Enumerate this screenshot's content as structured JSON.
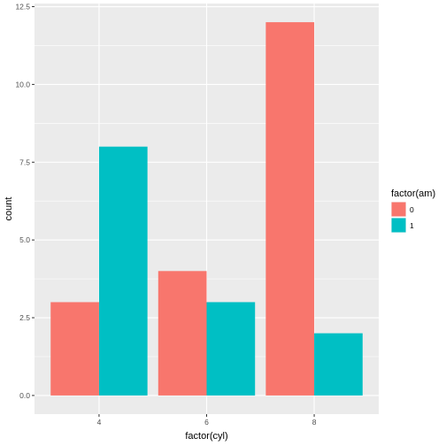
{
  "chart_data": {
    "type": "bar",
    "categories": [
      "4",
      "6",
      "8"
    ],
    "series": [
      {
        "name": "0",
        "values": [
          3,
          4,
          12
        ],
        "color": "#F8766D"
      },
      {
        "name": "1",
        "values": [
          8,
          3,
          2
        ],
        "color": "#00BFC4"
      }
    ],
    "xlabel": "factor(cyl)",
    "ylabel": "count",
    "ylim": [
      0,
      12.5
    ],
    "yticks": [
      "0.0",
      "2.5",
      "5.0",
      "7.5",
      "10.0",
      "12.5"
    ],
    "legend": {
      "title": "factor(am)",
      "placement": "right"
    },
    "grid": true,
    "panel_background": "#EBEBEB"
  }
}
